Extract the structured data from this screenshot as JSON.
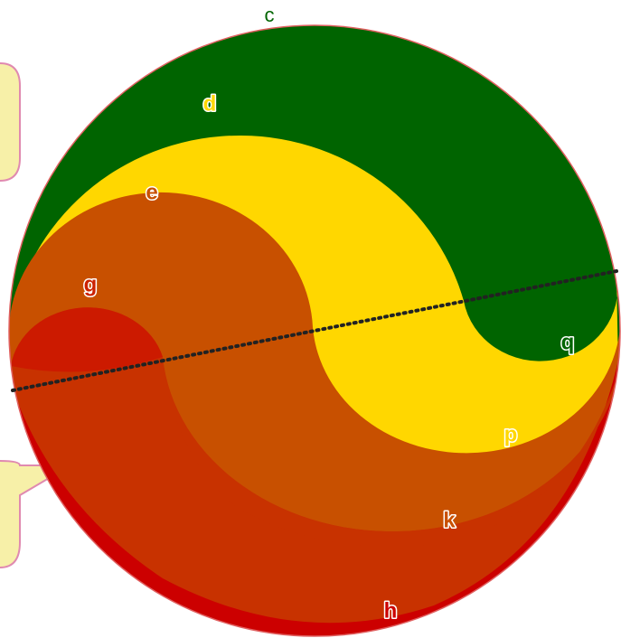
{
  "labels": {
    "c": "c",
    "d": "d",
    "e": "e",
    "g": "g",
    "q": "q",
    "p": "p",
    "k": "k",
    "h": "h"
  },
  "colors": {
    "band_c": "#006400",
    "band_d": "#ffd700",
    "band_e": "#c85000",
    "band_g": "#cc2200",
    "band_h": "#cc0000",
    "outline": "#d04a4a",
    "callout_fill": "#f7f0a8",
    "callout_stroke": "#e08ab0",
    "dotted_line": "#222222",
    "label_text": "#ffffff",
    "label_c": "#006400"
  }
}
